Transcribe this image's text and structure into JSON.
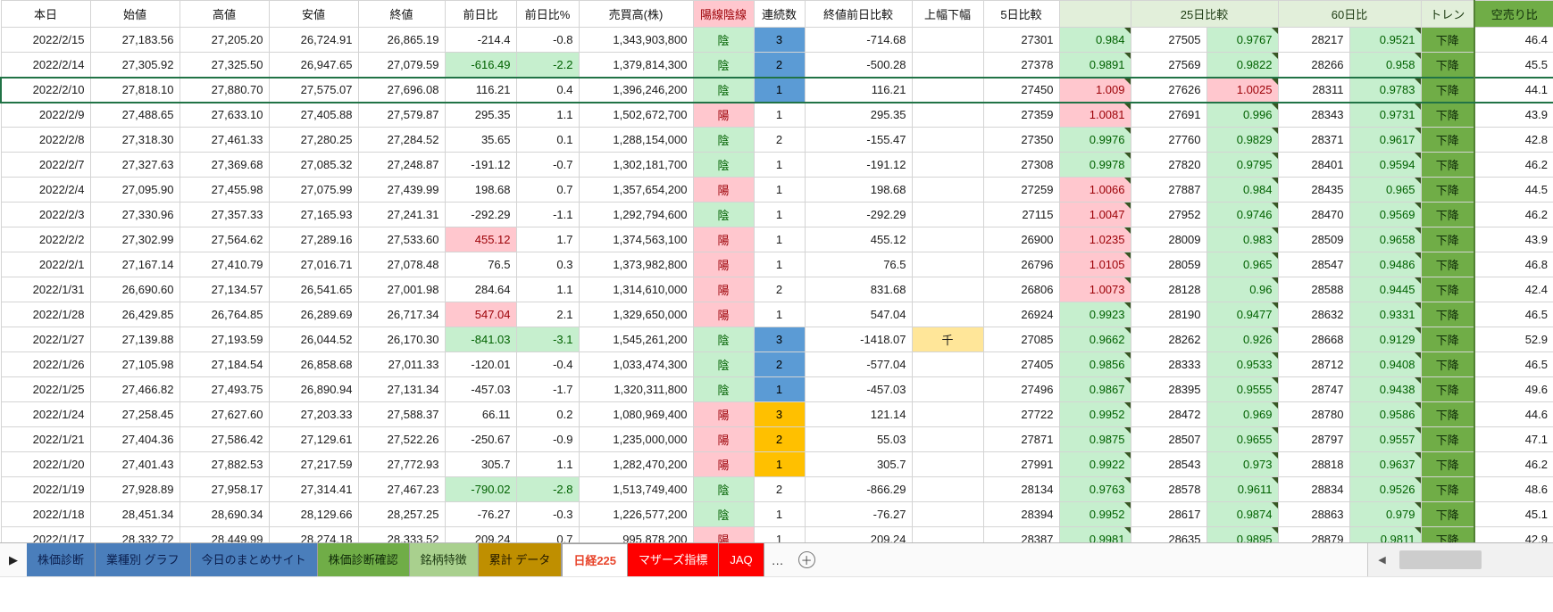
{
  "table": {
    "headers": {
      "date": "本日",
      "open": "始値",
      "high": "高値",
      "low": "安値",
      "close": "終値",
      "chg": "前日比",
      "pct": "前日比%",
      "vol": "売買高(株)",
      "candle": "陽線陰線",
      "streak": "連続数",
      "close_diff": "終値前日比較",
      "range": "上幅下幅",
      "cmp5": "5日比較",
      "cmp25": "25日比較",
      "cmp60": "60日比",
      "trend": "トレン",
      "short_ratio": "空売り比"
    },
    "selected_row": 2,
    "rows": [
      {
        "date": "2022/2/15",
        "open": "27,183.56",
        "high": "27,205.20",
        "low": "26,724.91",
        "close": "26,865.19",
        "chg": "-214.4",
        "chg_bg": "",
        "pct": "-0.8",
        "pct_bg": "",
        "vol": "1,343,903,800",
        "candle": "陰",
        "streak": "3",
        "streak_bg": "blue",
        "close_diff": "-714.68",
        "range": "",
        "d5": "27301",
        "r5": "0.984",
        "d25": "27505",
        "r25": "0.9767",
        "d60": "28217",
        "r60": "0.9521",
        "trend": "下降",
        "short_ratio": "46.4"
      },
      {
        "date": "2022/2/14",
        "open": "27,305.92",
        "high": "27,325.50",
        "low": "26,947.65",
        "close": "27,079.59",
        "chg": "-616.49",
        "chg_bg": "g",
        "pct": "-2.2",
        "pct_bg": "g",
        "vol": "1,379,814,300",
        "candle": "陰",
        "streak": "2",
        "streak_bg": "blue",
        "close_diff": "-500.28",
        "range": "",
        "d5": "27378",
        "r5": "0.9891",
        "d25": "27569",
        "r25": "0.9822",
        "d60": "28266",
        "r60": "0.958",
        "trend": "下降",
        "short_ratio": "45.5"
      },
      {
        "date": "2022/2/10",
        "open": "27,818.10",
        "high": "27,880.70",
        "low": "27,575.07",
        "close": "27,696.08",
        "chg": "116.21",
        "chg_bg": "",
        "pct": "0.4",
        "pct_bg": "",
        "vol": "1,396,246,200",
        "candle": "陰",
        "streak": "1",
        "streak_bg": "blue",
        "close_diff": "116.21",
        "range": "",
        "d5": "27450",
        "r5": "1.009",
        "d25": "27626",
        "r25": "1.0025",
        "d60": "28311",
        "r60": "0.9783",
        "trend": "下降",
        "short_ratio": "44.1"
      },
      {
        "date": "2022/2/9",
        "open": "27,488.65",
        "high": "27,633.10",
        "low": "27,405.88",
        "close": "27,579.87",
        "chg": "295.35",
        "chg_bg": "",
        "pct": "1.1",
        "pct_bg": "",
        "vol": "1,502,672,700",
        "candle": "陽",
        "streak": "1",
        "streak_bg": "",
        "close_diff": "295.35",
        "range": "",
        "d5": "27359",
        "r5": "1.0081",
        "d25": "27691",
        "r25": "0.996",
        "d60": "28343",
        "r60": "0.9731",
        "trend": "下降",
        "short_ratio": "43.9"
      },
      {
        "date": "2022/2/8",
        "open": "27,318.30",
        "high": "27,461.33",
        "low": "27,280.25",
        "close": "27,284.52",
        "chg": "35.65",
        "chg_bg": "",
        "pct": "0.1",
        "pct_bg": "",
        "vol": "1,288,154,000",
        "candle": "陰",
        "streak": "2",
        "streak_bg": "",
        "close_diff": "-155.47",
        "range": "",
        "d5": "27350",
        "r5": "0.9976",
        "d25": "27760",
        "r25": "0.9829",
        "d60": "28371",
        "r60": "0.9617",
        "trend": "下降",
        "short_ratio": "42.8"
      },
      {
        "date": "2022/2/7",
        "open": "27,327.63",
        "high": "27,369.68",
        "low": "27,085.32",
        "close": "27,248.87",
        "chg": "-191.12",
        "chg_bg": "",
        "pct": "-0.7",
        "pct_bg": "",
        "vol": "1,302,181,700",
        "candle": "陰",
        "streak": "1",
        "streak_bg": "",
        "close_diff": "-191.12",
        "range": "",
        "d5": "27308",
        "r5": "0.9978",
        "d25": "27820",
        "r25": "0.9795",
        "d60": "28401",
        "r60": "0.9594",
        "trend": "下降",
        "short_ratio": "46.2"
      },
      {
        "date": "2022/2/4",
        "open": "27,095.90",
        "high": "27,455.98",
        "low": "27,075.99",
        "close": "27,439.99",
        "chg": "198.68",
        "chg_bg": "",
        "pct": "0.7",
        "pct_bg": "",
        "vol": "1,357,654,200",
        "candle": "陽",
        "streak": "1",
        "streak_bg": "",
        "close_diff": "198.68",
        "range": "",
        "d5": "27259",
        "r5": "1.0066",
        "d25": "27887",
        "r25": "0.984",
        "d60": "28435",
        "r60": "0.965",
        "trend": "下降",
        "short_ratio": "44.5"
      },
      {
        "date": "2022/2/3",
        "open": "27,330.96",
        "high": "27,357.33",
        "low": "27,165.93",
        "close": "27,241.31",
        "chg": "-292.29",
        "chg_bg": "",
        "pct": "-1.1",
        "pct_bg": "",
        "vol": "1,292,794,600",
        "candle": "陰",
        "streak": "1",
        "streak_bg": "",
        "close_diff": "-292.29",
        "range": "",
        "d5": "27115",
        "r5": "1.0047",
        "d25": "27952",
        "r25": "0.9746",
        "d60": "28470",
        "r60": "0.9569",
        "trend": "下降",
        "short_ratio": "46.2"
      },
      {
        "date": "2022/2/2",
        "open": "27,302.99",
        "high": "27,564.62",
        "low": "27,289.16",
        "close": "27,533.60",
        "chg": "455.12",
        "chg_bg": "p",
        "pct": "1.7",
        "pct_bg": "",
        "vol": "1,374,563,100",
        "candle": "陽",
        "streak": "1",
        "streak_bg": "",
        "close_diff": "455.12",
        "range": "",
        "d5": "26900",
        "r5": "1.0235",
        "d25": "28009",
        "r25": "0.983",
        "d60": "28509",
        "r60": "0.9658",
        "trend": "下降",
        "short_ratio": "43.9"
      },
      {
        "date": "2022/2/1",
        "open": "27,167.14",
        "high": "27,410.79",
        "low": "27,016.71",
        "close": "27,078.48",
        "chg": "76.5",
        "chg_bg": "",
        "pct": "0.3",
        "pct_bg": "",
        "vol": "1,373,982,800",
        "candle": "陽",
        "streak": "1",
        "streak_bg": "",
        "close_diff": "76.5",
        "range": "",
        "d5": "26796",
        "r5": "1.0105",
        "d25": "28059",
        "r25": "0.965",
        "d60": "28547",
        "r60": "0.9486",
        "trend": "下降",
        "short_ratio": "46.8"
      },
      {
        "date": "2022/1/31",
        "open": "26,690.60",
        "high": "27,134.57",
        "low": "26,541.65",
        "close": "27,001.98",
        "chg": "284.64",
        "chg_bg": "",
        "pct": "1.1",
        "pct_bg": "",
        "vol": "1,314,610,000",
        "candle": "陽",
        "streak": "2",
        "streak_bg": "",
        "close_diff": "831.68",
        "range": "",
        "d5": "26806",
        "r5": "1.0073",
        "d25": "28128",
        "r25": "0.96",
        "d60": "28588",
        "r60": "0.9445",
        "trend": "下降",
        "short_ratio": "42.4"
      },
      {
        "date": "2022/1/28",
        "open": "26,429.85",
        "high": "26,764.85",
        "low": "26,289.69",
        "close": "26,717.34",
        "chg": "547.04",
        "chg_bg": "p",
        "pct": "2.1",
        "pct_bg": "",
        "vol": "1,329,650,000",
        "candle": "陽",
        "streak": "1",
        "streak_bg": "",
        "close_diff": "547.04",
        "range": "",
        "d5": "26924",
        "r5": "0.9923",
        "d25": "28190",
        "r25": "0.9477",
        "d60": "28632",
        "r60": "0.9331",
        "trend": "下降",
        "short_ratio": "46.5"
      },
      {
        "date": "2022/1/27",
        "open": "27,139.88",
        "high": "27,193.59",
        "low": "26,044.52",
        "close": "26,170.30",
        "chg": "-841.03",
        "chg_bg": "g",
        "pct": "-3.1",
        "pct_bg": "g",
        "vol": "1,545,261,200",
        "candle": "陰",
        "streak": "3",
        "streak_bg": "blue",
        "close_diff": "-1418.07",
        "range": "千",
        "d5": "27085",
        "r5": "0.9662",
        "d25": "28262",
        "r25": "0.926",
        "d60": "28668",
        "r60": "0.9129",
        "trend": "下降",
        "short_ratio": "52.9"
      },
      {
        "date": "2022/1/26",
        "open": "27,105.98",
        "high": "27,184.54",
        "low": "26,858.68",
        "close": "27,011.33",
        "chg": "-120.01",
        "chg_bg": "",
        "pct": "-0.4",
        "pct_bg": "",
        "vol": "1,033,474,300",
        "candle": "陰",
        "streak": "2",
        "streak_bg": "blue",
        "close_diff": "-577.04",
        "range": "",
        "d5": "27405",
        "r5": "0.9856",
        "d25": "28333",
        "r25": "0.9533",
        "d60": "28712",
        "r60": "0.9408",
        "trend": "下降",
        "short_ratio": "46.5"
      },
      {
        "date": "2022/1/25",
        "open": "27,466.82",
        "high": "27,493.75",
        "low": "26,890.94",
        "close": "27,131.34",
        "chg": "-457.03",
        "chg_bg": "",
        "pct": "-1.7",
        "pct_bg": "",
        "vol": "1,320,311,800",
        "candle": "陰",
        "streak": "1",
        "streak_bg": "blue",
        "close_diff": "-457.03",
        "range": "",
        "d5": "27496",
        "r5": "0.9867",
        "d25": "28395",
        "r25": "0.9555",
        "d60": "28747",
        "r60": "0.9438",
        "trend": "下降",
        "short_ratio": "49.6"
      },
      {
        "date": "2022/1/24",
        "open": "27,258.45",
        "high": "27,627.60",
        "low": "27,203.33",
        "close": "27,588.37",
        "chg": "66.11",
        "chg_bg": "",
        "pct": "0.2",
        "pct_bg": "",
        "vol": "1,080,969,400",
        "candle": "陽",
        "streak": "3",
        "streak_bg": "orange",
        "close_diff": "121.14",
        "range": "",
        "d5": "27722",
        "r5": "0.9952",
        "d25": "28472",
        "r25": "0.969",
        "d60": "28780",
        "r60": "0.9586",
        "trend": "下降",
        "short_ratio": "44.6"
      },
      {
        "date": "2022/1/21",
        "open": "27,404.36",
        "high": "27,586.42",
        "low": "27,129.61",
        "close": "27,522.26",
        "chg": "-250.67",
        "chg_bg": "",
        "pct": "-0.9",
        "pct_bg": "",
        "vol": "1,235,000,000",
        "candle": "陽",
        "streak": "2",
        "streak_bg": "orange",
        "close_diff": "55.03",
        "range": "",
        "d5": "27871",
        "r5": "0.9875",
        "d25": "28507",
        "r25": "0.9655",
        "d60": "28797",
        "r60": "0.9557",
        "trend": "下降",
        "short_ratio": "47.1"
      },
      {
        "date": "2022/1/20",
        "open": "27,401.43",
        "high": "27,882.53",
        "low": "27,217.59",
        "close": "27,772.93",
        "chg": "305.7",
        "chg_bg": "",
        "pct": "1.1",
        "pct_bg": "",
        "vol": "1,282,470,200",
        "candle": "陽",
        "streak": "1",
        "streak_bg": "orange",
        "close_diff": "305.7",
        "range": "",
        "d5": "27991",
        "r5": "0.9922",
        "d25": "28543",
        "r25": "0.973",
        "d60": "28818",
        "r60": "0.9637",
        "trend": "下降",
        "short_ratio": "46.2"
      },
      {
        "date": "2022/1/19",
        "open": "27,928.89",
        "high": "27,958.17",
        "low": "27,314.41",
        "close": "27,467.23",
        "chg": "-790.02",
        "chg_bg": "g",
        "pct": "-2.8",
        "pct_bg": "g",
        "vol": "1,513,749,400",
        "candle": "陰",
        "streak": "2",
        "streak_bg": "",
        "close_diff": "-866.29",
        "range": "",
        "d5": "28134",
        "r5": "0.9763",
        "d25": "28578",
        "r25": "0.9611",
        "d60": "28834",
        "r60": "0.9526",
        "trend": "下降",
        "short_ratio": "48.6"
      },
      {
        "date": "2022/1/18",
        "open": "28,451.34",
        "high": "28,690.34",
        "low": "28,129.66",
        "close": "28,257.25",
        "chg": "-76.27",
        "chg_bg": "",
        "pct": "-0.3",
        "pct_bg": "",
        "vol": "1,226,577,200",
        "candle": "陰",
        "streak": "1",
        "streak_bg": "",
        "close_diff": "-76.27",
        "range": "",
        "d5": "28394",
        "r5": "0.9952",
        "d25": "28617",
        "r25": "0.9874",
        "d60": "28863",
        "r60": "0.979",
        "trend": "下降",
        "short_ratio": "45.1"
      },
      {
        "date": "2022/1/17",
        "open": "28,332.72",
        "high": "28,449.99",
        "low": "28,274.18",
        "close": "28,333.52",
        "chg": "209.24",
        "chg_bg": "",
        "pct": "0.7",
        "pct_bg": "",
        "vol": "995,878,200",
        "candle": "陽",
        "streak": "1",
        "streak_bg": "",
        "close_diff": "209.24",
        "range": "",
        "d5": "28387",
        "r5": "0.9981",
        "d25": "28635",
        "r25": "0.9895",
        "d60": "28879",
        "r60": "0.9811",
        "trend": "下降",
        "short_ratio": "42.9"
      }
    ]
  },
  "tabs": {
    "nav_arrow": "▶",
    "items": [
      {
        "label": "株価診断",
        "bg": "#4a7ebb",
        "fg": "#0b1f4e",
        "active": false
      },
      {
        "label": "業種別 グラフ",
        "bg": "#4a7ebb",
        "fg": "#0b1f4e",
        "active": false
      },
      {
        "label": "今日のまとめサイト",
        "bg": "#4a7ebb",
        "fg": "#0b1f4e",
        "active": false
      },
      {
        "label": "株価診断確認",
        "bg": "#70ad47",
        "fg": "#0e2a08",
        "active": false
      },
      {
        "label": "銘柄特徴",
        "bg": "#a9d08e",
        "fg": "#1d3b12",
        "active": false
      },
      {
        "label": "累計 データ",
        "bg": "#bf8f00",
        "fg": "#201700",
        "active": false
      },
      {
        "label": "日経225",
        "bg": "#ffffff",
        "fg": "#e8452c",
        "active": true
      },
      {
        "label": "マザーズ指標",
        "bg": "#ff0000",
        "fg": "#ffffff",
        "active": false
      },
      {
        "label": "JAQ",
        "bg": "#ff0000",
        "fg": "#ffffff",
        "active": false
      }
    ],
    "more_label": "…",
    "add_label": "＋",
    "scroll_left_arrow": "◀"
  },
  "colors": {
    "positive_bg": "#ffc7ce",
    "positive_fg": "#9c0006",
    "negative_bg": "#c6efce",
    "negative_fg": "#006100",
    "streak_blue": "#5b9bd5",
    "streak_orange": "#ffc000",
    "trend_bg": "#70ad47",
    "flag_yellow": "#ffe699",
    "selection_green": "#217346",
    "header_band_green": "#e2efda"
  }
}
